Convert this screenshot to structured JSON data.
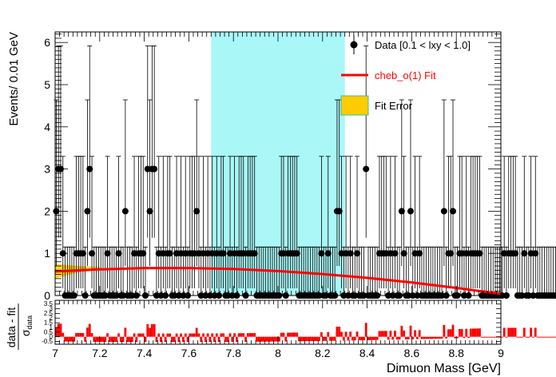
{
  "chart_data": [
    {
      "type": "scatter",
      "panel": "main",
      "xlabel": "Dimuon Mass [GeV]",
      "ylabel": "Events/ 0.01 GeV",
      "xlim": [
        7.0,
        9.0
      ],
      "ylim": [
        0,
        6.25
      ],
      "x_ticks": [
        "7",
        "7.2",
        "7.4",
        "7.6",
        "7.8",
        "8",
        "8.2",
        "8.4",
        "8.6",
        "8.8",
        "9"
      ],
      "y_ticks": [
        "0",
        "1",
        "2",
        "3",
        "4",
        "5",
        "6"
      ],
      "signal_window": {
        "x_min": 7.7,
        "x_max": 8.3,
        "color": "#aaf7f7"
      },
      "legend_position": "top-right",
      "legend": [
        {
          "label": "Data [0.1 < lxy < 1.0]",
          "marker": "point-errorbar",
          "color": "#000000"
        },
        {
          "label": "cheb_o(1) Fit",
          "marker": "line",
          "color": "#ff0000"
        },
        {
          "label": "Fit Error",
          "marker": "box",
          "color": "#ffcc00"
        }
      ],
      "series": [
        {
          "name": "Data [0.1 < lxy < 1.0]",
          "kind": "points",
          "color": "#000000",
          "bin_width": 0.01,
          "x_start": 7.005,
          "y": [
            2,
            3,
            3,
            1,
            0,
            0,
            0,
            0,
            0,
            1,
            1,
            1,
            1,
            0,
            2,
            3,
            1,
            0,
            0,
            0,
            0,
            0,
            0,
            1,
            0,
            0,
            0,
            0,
            1,
            0,
            0,
            2,
            0,
            0,
            0,
            1,
            0,
            1,
            1,
            1,
            0,
            3,
            2,
            3,
            3,
            0,
            1,
            0,
            1,
            0,
            1,
            1,
            0,
            0,
            1,
            0,
            1,
            0,
            1,
            0,
            1,
            1,
            1,
            2,
            1,
            0,
            1,
            0,
            1,
            0,
            1,
            0,
            1,
            0,
            1,
            1,
            0,
            0,
            1,
            0,
            1,
            0,
            1,
            1,
            1,
            0,
            1,
            1,
            1,
            1,
            0,
            0,
            0,
            0,
            0,
            0,
            0,
            0,
            0,
            0,
            0,
            1,
            1,
            0,
            1,
            1,
            1,
            1,
            1,
            0,
            0,
            0,
            0,
            0,
            0,
            0,
            0,
            0,
            0,
            1,
            0,
            0,
            1,
            0,
            0,
            0,
            2,
            2,
            1,
            0,
            1,
            0,
            1,
            0,
            0,
            1,
            0,
            0,
            0,
            3,
            0,
            0,
            0,
            0,
            0,
            1,
            1,
            1,
            1,
            0,
            1,
            0,
            1,
            0,
            0,
            2,
            1,
            0,
            0,
            2,
            0,
            1,
            0,
            1,
            0,
            0,
            0,
            0,
            0,
            0,
            0,
            0,
            0,
            0,
            2,
            0,
            1,
            1,
            2,
            0,
            0,
            1,
            1,
            0,
            1,
            0,
            1,
            1,
            1,
            1,
            1,
            0,
            0,
            0,
            0,
            0,
            0,
            0,
            0,
            0,
            0,
            1,
            0,
            1,
            1,
            1,
            1,
            0,
            0,
            0,
            1,
            0,
            0,
            1,
            0,
            1,
            0,
            0,
            0,
            0,
            0,
            0,
            0,
            0,
            0,
            0,
            0,
            0,
            0,
            0
          ]
        },
        {
          "name": "cheb_o(1) Fit",
          "kind": "line",
          "color": "#ff0000",
          "x": [
            7.0,
            7.2,
            7.4,
            7.6,
            7.8,
            8.0,
            8.2,
            8.4,
            8.6,
            8.8,
            9.0
          ],
          "y": [
            0.57,
            0.62,
            0.65,
            0.65,
            0.63,
            0.58,
            0.51,
            0.42,
            0.31,
            0.18,
            0.04
          ]
        },
        {
          "name": "Fit Error",
          "kind": "band",
          "color": "#ffcc00",
          "x": [
            7.0,
            7.1,
            7.2
          ],
          "y_low": [
            0.4,
            0.55,
            0.62
          ],
          "y_high": [
            0.75,
            0.7,
            0.68
          ]
        }
      ]
    },
    {
      "type": "bar",
      "panel": "ratio",
      "xlabel": "Dimuon Mass [GeV]",
      "ylabel": "data - fit / σ_data",
      "xlim": [
        7.0,
        9.0
      ],
      "ylim": [
        -0.8,
        3.9
      ],
      "y_ticks": [
        "-0.5",
        "0",
        "0.5",
        "1",
        "1.5",
        "2",
        "2.5",
        "3",
        "3.5"
      ],
      "color": "#ff0000"
    }
  ]
}
